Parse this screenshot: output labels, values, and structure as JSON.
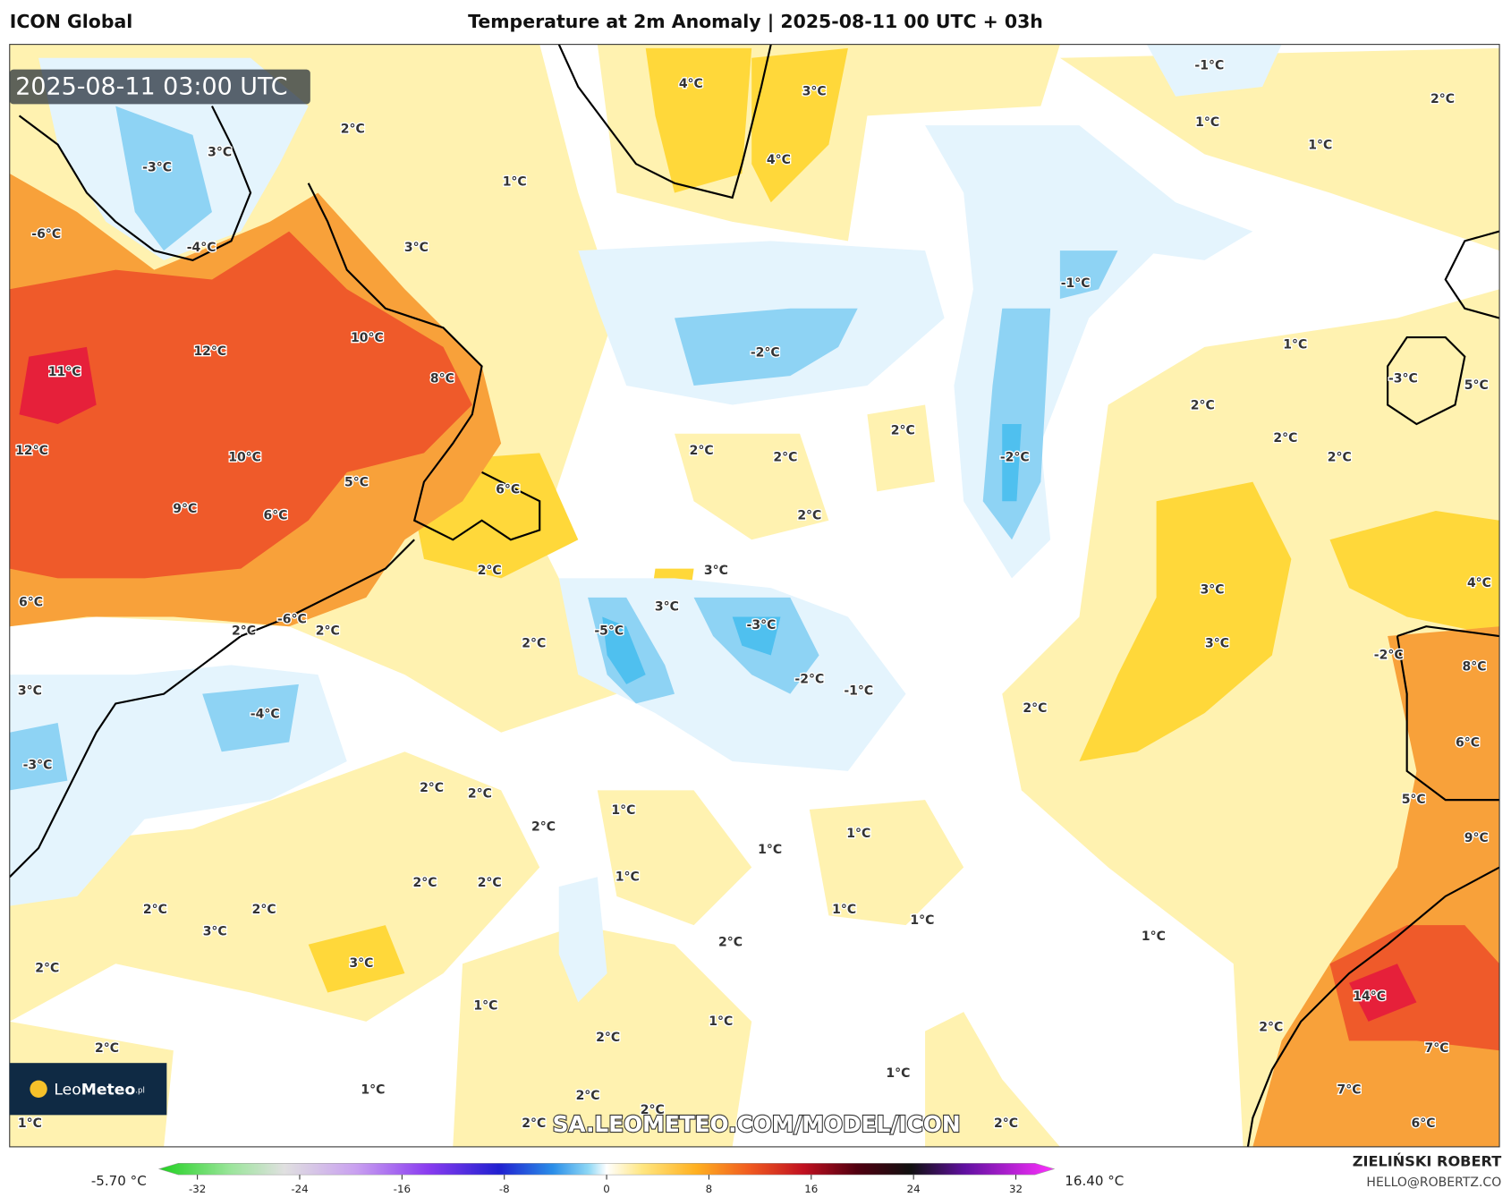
{
  "header": {
    "model": "ICON Global",
    "title": "Temperature at 2m Anomaly | 2025-08-11 00 UTC + 03h",
    "timestamp": "2025-08-11 03:00 UTC"
  },
  "map": {
    "labels": [
      "-1°C",
      "4°C",
      "3°C",
      "2°C",
      "1°C",
      "1°C",
      "2°C",
      "3°C",
      "-3°C",
      "4°C",
      "1°C",
      "-6°C",
      "-4°C",
      "3°C",
      "-1°C",
      "10°C",
      "12°C",
      "-2°C",
      "1°C",
      "11°C",
      "8°C",
      "-3°C",
      "5°C",
      "2°C",
      "2°C",
      "2°C",
      "12°C",
      "2°C",
      "-2°C",
      "10°C",
      "2°C",
      "2°C",
      "5°C",
      "6°C",
      "9°C",
      "6°C",
      "2°C",
      "2°C",
      "3°C",
      "3°C",
      "4°C",
      "6°C",
      "3°C",
      "-3°C",
      "-5°C",
      "2°C",
      "-6°C",
      "2°C",
      "3°C",
      "2°C",
      "-2°C",
      "8°C",
      "-2°C",
      "-1°C",
      "3°C",
      "2°C",
      "-4°C",
      "6°C",
      "-3°C",
      "2°C",
      "2°C",
      "5°C",
      "1°C",
      "2°C",
      "1°C",
      "9°C",
      "1°C",
      "2°C",
      "2°C",
      "1°C",
      "2°C",
      "2°C",
      "1°C",
      "1°C",
      "3°C",
      "2°C",
      "1°C",
      "3°C",
      "2°C",
      "14°C",
      "1°C",
      "2°C",
      "1°C",
      "2°C",
      "2°C",
      "7°C",
      "1°C",
      "1°C",
      "7°C",
      "2°C",
      "2°C",
      "2°C",
      "2°C",
      "6°C",
      "1°C"
    ]
  },
  "watermark": "SA.LEOMETEO.COM/MODEL/ICON",
  "logo": {
    "leo": "Leo",
    "meteo": "Meteo",
    "tld": ".pl"
  },
  "colorbar": {
    "min_label": "-5.70 °C",
    "max_label": "16.40 °C",
    "lim": [
      -35,
      35
    ],
    "ticks": [
      -32,
      -24,
      -16,
      -8,
      0,
      8,
      16,
      24,
      32
    ]
  },
  "footer": {
    "author": "ZIELIŃSKI ROBERT",
    "email": "HELLO@ROBERTZ.CO"
  }
}
